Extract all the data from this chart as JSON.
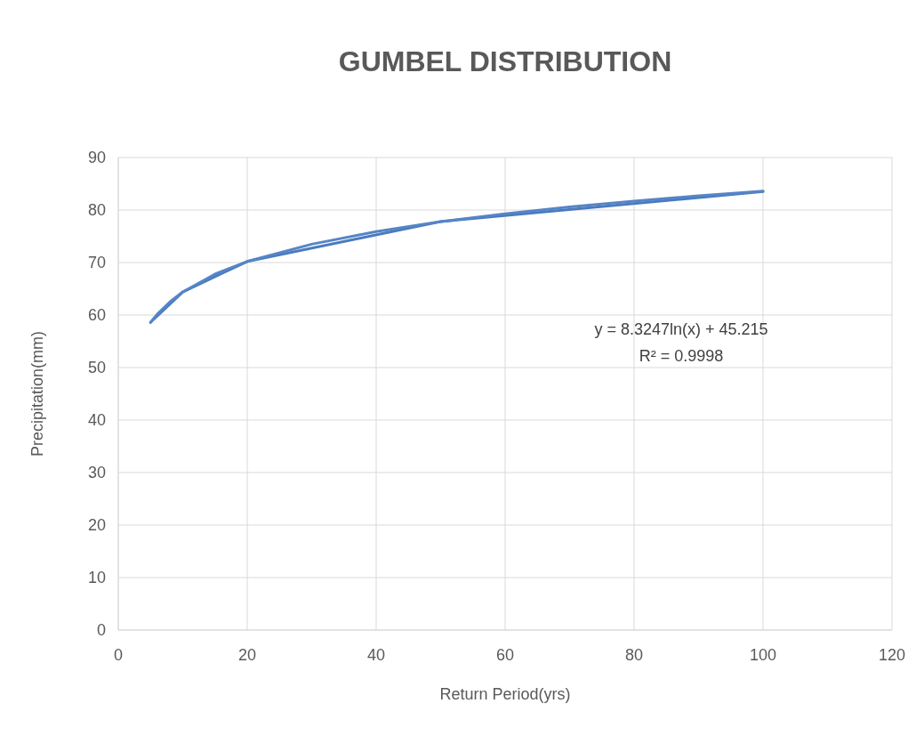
{
  "chart_data": {
    "type": "line",
    "title": "GUMBEL DISTRIBUTION",
    "xlabel": "Return Period(yrs)",
    "ylabel": "Precipitation(mm)",
    "series": [
      {
        "color": "#4a7bbf",
        "x": [
          5,
          10,
          20,
          50,
          100
        ],
        "values": [
          58.6,
          64.4,
          70.2,
          77.8,
          83.5
        ]
      },
      {
        "type": "line",
        "color": "#5585c6",
        "x": [
          5,
          6,
          8,
          10,
          15,
          20,
          30,
          40,
          50,
          60,
          70,
          80,
          90,
          100
        ],
        "values": [
          58.6,
          60.1,
          62.5,
          64.4,
          67.8,
          70.2,
          73.5,
          75.9,
          77.8,
          79.3,
          80.6,
          81.7,
          82.7,
          83.6
        ]
      }
    ],
    "annotations": [
      "y = 8.3247ln(x) + 45.215",
      "R² = 0.9998"
    ],
    "xlim": [
      0,
      120
    ],
    "xticks": [
      0,
      20,
      40,
      60,
      80,
      100,
      120
    ],
    "ylim": [
      0,
      90
    ],
    "yticks": [
      0,
      10,
      20,
      30,
      40,
      50,
      60,
      70,
      80,
      90
    ],
    "grid": true,
    "marker": "none",
    "line_style": "solid"
  }
}
